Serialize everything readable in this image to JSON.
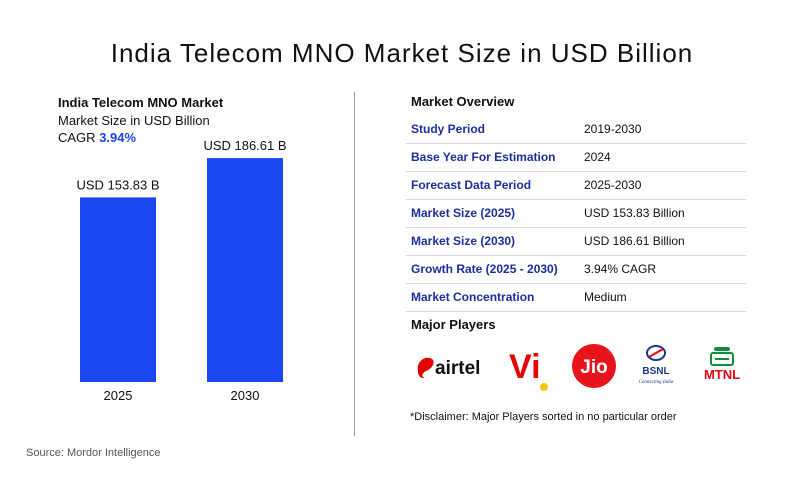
{
  "title": "India Telecom MNO Market Size in USD Billion",
  "left_header": {
    "market_name": "India Telecom MNO Market",
    "subtitle": "Market Size in USD Billion",
    "cagr_label": "CAGR",
    "cagr_value": "3.94%"
  },
  "chart_data": {
    "type": "bar",
    "categories": [
      "2025",
      "2030"
    ],
    "values": [
      153.83,
      186.61
    ],
    "data_labels": [
      "USD 153.83 B",
      "USD 186.61 B"
    ],
    "ylim": [
      0,
      200
    ],
    "bar_color": "#1a48f0",
    "grid": false
  },
  "overview": {
    "title": "Market Overview",
    "rows": [
      {
        "label": "Study Period",
        "value": "2019-2030"
      },
      {
        "label": "Base Year For Estimation",
        "value": "2024"
      },
      {
        "label": "Forecast Data Period",
        "value": "2025-2030"
      },
      {
        "label": "Market Size (2025)",
        "value": "USD 153.83 Billion"
      },
      {
        "label": "Market Size (2030)",
        "value": "USD 186.61 Billion"
      },
      {
        "label": "Growth Rate (2025 - 2030)",
        "value": "3.94% CAGR"
      },
      {
        "label": "Market Concentration",
        "value": "Medium"
      }
    ]
  },
  "players": {
    "title": "Major Players",
    "logos": [
      {
        "icon": "airtel-logo",
        "text": "airtel",
        "color": "#e40000"
      },
      {
        "icon": "vi-logo",
        "text": "Vi",
        "color": "#e60000"
      },
      {
        "icon": "jio-logo",
        "text": "Jio",
        "color": "#e8141b"
      },
      {
        "icon": "bsnl-logo",
        "text": "BSNL",
        "tagline": "Connecting India",
        "color": "#1a3a8c"
      },
      {
        "icon": "mtnl-logo",
        "text": "MTNL",
        "color": "#e30613"
      }
    ]
  },
  "disclaimer": "*Disclaimer: Major Players sorted in no particular order",
  "source": "Source: Mordor Intelligence"
}
